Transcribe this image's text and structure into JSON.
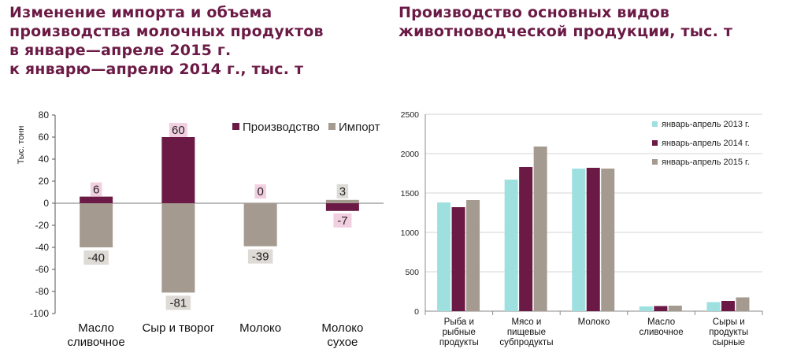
{
  "left_title": [
    "Изменение импорта и объема",
    "производства молочных продуктов",
    "в январе—апреле 2015 г.",
    "к январю—апрелю 2014 г., тыс. т"
  ],
  "right_title": [
    "Производство основных видов",
    "животноводческой продукции, тыс. т"
  ],
  "chart_data": [
    {
      "type": "bar",
      "stacked": true,
      "ylabel": "Тыс. тонн",
      "ylim": [
        -100,
        80
      ],
      "yticks": [
        -100,
        -80,
        -60,
        -40,
        -20,
        0,
        20,
        40,
        60,
        80
      ],
      "categories": [
        [
          "Масло",
          "сливочное"
        ],
        [
          "Сыр и творог"
        ],
        [
          "Молоко"
        ],
        [
          "Молоко",
          "сухое"
        ]
      ],
      "legend_position": "top-right",
      "series": [
        {
          "name": "Производство",
          "color": "#6b1a45",
          "values": [
            6,
            60,
            0,
            -7
          ],
          "labels": [
            "6",
            "60",
            "0",
            "-7"
          ]
        },
        {
          "name": "Импорт",
          "color": "#a59a8f",
          "values": [
            -40,
            -81,
            -39,
            3
          ],
          "labels": [
            "-40",
            "-81",
            "-39",
            "3"
          ]
        }
      ]
    },
    {
      "type": "bar",
      "ylim": [
        0,
        2500
      ],
      "yticks": [
        0,
        500,
        1000,
        1500,
        2000,
        2500
      ],
      "grid": true,
      "categories": [
        [
          "Рыба и",
          "рыбные",
          "продукты"
        ],
        [
          "Мясо и",
          "пищевые",
          "субпродукты"
        ],
        [
          "Молоко"
        ],
        [
          "Масло",
          "сливочное"
        ],
        [
          "Сыры и",
          "продукты",
          "сырные"
        ]
      ],
      "legend_position": "top-right",
      "series": [
        {
          "name": "январь-апрель 2013 г.",
          "color": "#9ee0e0",
          "values": [
            1380,
            1670,
            1810,
            60,
            115
          ]
        },
        {
          "name": "январь-апрель 2014 г.",
          "color": "#6b1a45",
          "values": [
            1320,
            1830,
            1820,
            65,
            130
          ]
        },
        {
          "name": "январь-апрель 2015 г.",
          "color": "#a59a8f",
          "values": [
            1410,
            2090,
            1810,
            70,
            175
          ]
        }
      ]
    }
  ]
}
